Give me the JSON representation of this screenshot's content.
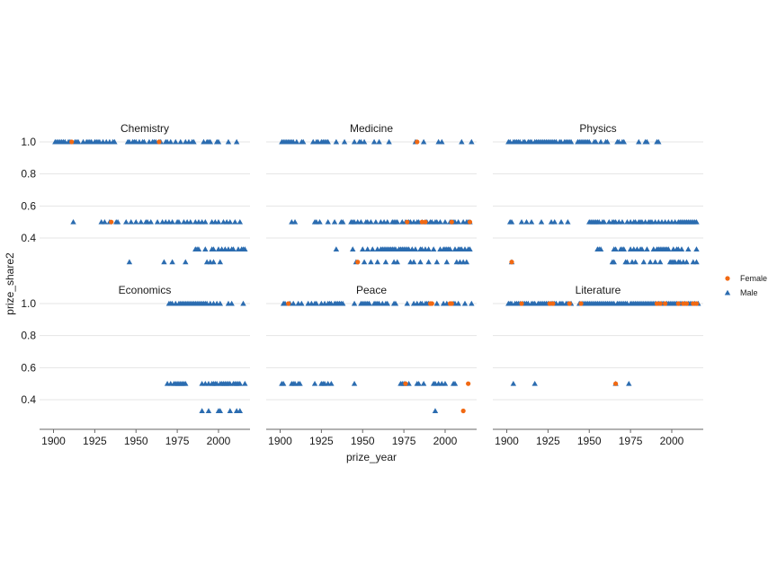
{
  "chart_data": {
    "type": "scatter",
    "xlabel": "prize_year",
    "ylabel": "prize_share2",
    "xlim": [
      1897,
      2018
    ],
    "ylim": [
      0.25,
      1.05
    ],
    "xticks": [
      1900,
      1925,
      1950,
      1975,
      2000
    ],
    "yticks": [
      0.4,
      0.6,
      0.8,
      1.0
    ],
    "ytick_labels": [
      "0.4",
      "0.6",
      "0.8",
      "1.0"
    ],
    "colors": {
      "Female": "#f16913",
      "Male": "#2b6cb0",
      "grid": "#e5e5e5",
      "axis": "#666666"
    },
    "legend": {
      "position": "right",
      "items": [
        {
          "name": "Female",
          "marker": "circle"
        },
        {
          "name": "Male",
          "marker": "triangle"
        }
      ]
    },
    "facets": [
      {
        "title": "Chemistry",
        "Male": {
          "1.0": [
            1901,
            1902,
            1903,
            1904,
            1905,
            1906,
            1907,
            1909,
            1910,
            1913,
            1914,
            1915,
            1918,
            1920,
            1921,
            1922,
            1923,
            1925,
            1926,
            1927,
            1928,
            1930,
            1932,
            1934,
            1936,
            1937,
            1945,
            1946,
            1948,
            1949,
            1950,
            1952,
            1954,
            1955,
            1958,
            1960,
            1961,
            1962,
            1964,
            1965,
            1968,
            1969,
            1971,
            1974,
            1977,
            1980,
            1982,
            1984,
            1985,
            1991,
            1993,
            1994,
            1995,
            1999,
            2000,
            2006,
            2011
          ],
          "0.5": [
            1912,
            1929,
            1931,
            1934,
            1938,
            1939,
            1944,
            1947,
            1950,
            1953,
            1956,
            1957,
            1959,
            1963,
            1966,
            1968,
            1970,
            1972,
            1975,
            1976,
            1979,
            1981,
            1983,
            1986,
            1988,
            1990,
            1992,
            1996,
            1998,
            2000,
            2003,
            2005,
            2007,
            2010,
            2013
          ],
          "0.33": [
            1986,
            1987,
            1988,
            1992,
            1996,
            1997,
            2000,
            2002,
            2004,
            2006,
            2008,
            2009,
            2012,
            2014,
            2015,
            2016
          ],
          "0.25": [
            1946,
            1967,
            1972,
            1980,
            1993,
            1995,
            1997,
            2001
          ]
        },
        "Female": {
          "1.0": [
            1911,
            1964
          ],
          "0.5": [
            1935
          ]
        }
      },
      {
        "title": "Medicine",
        "Male": {
          "1.0": [
            1901,
            1902,
            1903,
            1904,
            1905,
            1906,
            1907,
            1908,
            1910,
            1913,
            1914,
            1920,
            1922,
            1923,
            1925,
            1926,
            1927,
            1928,
            1929,
            1934,
            1939,
            1945,
            1948,
            1949,
            1951,
            1957,
            1960,
            1966,
            1982,
            1987,
            1996,
            1998,
            2010,
            2016
          ],
          "0.5": [
            1907,
            1909,
            1921,
            1922,
            1924,
            1929,
            1933,
            1937,
            1938,
            1943,
            1944,
            1945,
            1947,
            1949,
            1952,
            1953,
            1955,
            1958,
            1961,
            1963,
            1965,
            1968,
            1969,
            1970,
            1971,
            1974,
            1976,
            1978,
            1979,
            1981,
            1983,
            1984,
            1986,
            1988,
            1989,
            1991,
            1992,
            1994,
            1995,
            1997,
            2000,
            2003,
            2004,
            2005,
            2006,
            2008,
            2011,
            2013,
            2014,
            2015
          ],
          "0.33": [
            1934,
            1944,
            1950,
            1953,
            1956,
            1959,
            1961,
            1962,
            1963,
            1964,
            1965,
            1966,
            1967,
            1968,
            1969,
            1970,
            1972,
            1973,
            1974,
            1975,
            1976,
            1977,
            1978,
            1980,
            1982,
            1985,
            1986,
            1988,
            1990,
            1993,
            1997,
            1999,
            2000,
            2001,
            2002,
            2003,
            2006,
            2008,
            2009,
            2010,
            2012,
            2014,
            2015
          ],
          "0.25": [
            1946,
            1951,
            1955,
            1959,
            1964,
            1969,
            1971,
            1979,
            1981,
            1985,
            1990,
            1995,
            2001,
            2007,
            2009,
            2011,
            2013
          ]
        },
        "Female": {
          "1.0": [
            1983
          ],
          "0.5": [
            1977,
            1986,
            1988,
            2004,
            2015
          ],
          "0.25": [
            1947
          ]
        }
      },
      {
        "title": "Physics",
        "Male": {
          "1.0": [
            1901,
            1902,
            1904,
            1905,
            1906,
            1907,
            1908,
            1910,
            1911,
            1913,
            1914,
            1915,
            1917,
            1918,
            1919,
            1920,
            1921,
            1922,
            1923,
            1924,
            1925,
            1926,
            1927,
            1928,
            1929,
            1930,
            1932,
            1933,
            1935,
            1936,
            1937,
            1938,
            1939,
            1943,
            1944,
            1945,
            1946,
            1947,
            1948,
            1949,
            1950,
            1953,
            1954,
            1957,
            1960,
            1961,
            1967,
            1968,
            1970,
            1971,
            1980,
            1984,
            1985,
            1991,
            1992
          ],
          "0.5": [
            1902,
            1903,
            1909,
            1912,
            1915,
            1921,
            1927,
            1929,
            1933,
            1937,
            1950,
            1951,
            1952,
            1953,
            1954,
            1955,
            1956,
            1958,
            1959,
            1962,
            1964,
            1965,
            1966,
            1968,
            1970,
            1973,
            1975,
            1977,
            1978,
            1980,
            1981,
            1982,
            1984,
            1986,
            1987,
            1988,
            1990,
            1992,
            1994,
            1996,
            1998,
            2000,
            2002,
            2004,
            2005,
            2006,
            2007,
            2008,
            2009,
            2010,
            2011,
            2012,
            2013,
            2014,
            2015
          ],
          "0.33": [
            1955,
            1956,
            1957,
            1965,
            1966,
            1969,
            1970,
            1971,
            1975,
            1977,
            1979,
            1981,
            1982,
            1985,
            1989,
            1991,
            1992,
            1993,
            1994,
            1995,
            1996,
            1997,
            1998,
            2001,
            2003,
            2004,
            2006,
            2010,
            2015
          ],
          "0.25": [
            1903,
            1964,
            1965,
            1972,
            1973,
            1976,
            1978,
            1983,
            1987,
            1990,
            1993,
            1999,
            2000,
            2001,
            2002,
            2004,
            2005,
            2007,
            2009,
            2013,
            2015
          ]
        },
        "Female": {
          "0.25": [
            1903
          ]
        }
      },
      {
        "title": "Economics",
        "Male": {
          "1.0": [
            1970,
            1971,
            1972,
            1974,
            1976,
            1977,
            1978,
            1979,
            1980,
            1981,
            1982,
            1983,
            1984,
            1985,
            1986,
            1987,
            1988,
            1989,
            1990,
            1991,
            1992,
            1993,
            1995,
            1997,
            1999,
            2001,
            2006,
            2008,
            2015
          ],
          "0.5": [
            1969,
            1971,
            1973,
            1974,
            1975,
            1976,
            1977,
            1978,
            1979,
            1980,
            1990,
            1992,
            1994,
            1996,
            1997,
            1998,
            1999,
            2001,
            2002,
            2003,
            2004,
            2005,
            2006,
            2007,
            2009,
            2010,
            2011,
            2012,
            2013,
            2016
          ],
          "0.33": [
            1990,
            1994,
            2000,
            2001,
            2007,
            2011,
            2013
          ]
        },
        "Female": {}
      },
      {
        "title": "Peace",
        "Male": {
          "1.0": [
            1902,
            1903,
            1906,
            1908,
            1911,
            1913,
            1917,
            1919,
            1921,
            1922,
            1925,
            1927,
            1929,
            1930,
            1931,
            1933,
            1934,
            1935,
            1936,
            1937,
            1938,
            1945,
            1949,
            1950,
            1951,
            1952,
            1953,
            1954,
            1957,
            1958,
            1959,
            1960,
            1962,
            1964,
            1965,
            1969,
            1970,
            1977,
            1981,
            1983,
            1985,
            1986,
            1988,
            1989,
            1990,
            1995,
            1999,
            2001,
            2005,
            2006,
            2008,
            2012,
            2016
          ],
          "0.5": [
            1901,
            1902,
            1907,
            1908,
            1909,
            1911,
            1912,
            1921,
            1925,
            1926,
            1927,
            1929,
            1931,
            1945,
            1973,
            1974,
            1975,
            1976,
            1978,
            1983,
            1984,
            1987,
            1993,
            1994,
            1996,
            1998,
            2000,
            2005,
            2006
          ],
          "0.33": [
            1994
          ]
        },
        "Female": {
          "1.0": [
            1905,
            1991,
            1992,
            2003,
            2004
          ],
          "0.5": [
            1976,
            2014
          ],
          "0.33": [
            2011
          ]
        }
      },
      {
        "title": "Literature",
        "Male": {
          "1.0": [
            1901,
            1902,
            1903,
            1905,
            1906,
            1907,
            1908,
            1910,
            1911,
            1912,
            1913,
            1915,
            1916,
            1917,
            1919,
            1920,
            1921,
            1922,
            1923,
            1924,
            1925,
            1927,
            1928,
            1929,
            1930,
            1932,
            1933,
            1934,
            1936,
            1937,
            1939,
            1944,
            1946,
            1947,
            1948,
            1949,
            1950,
            1951,
            1952,
            1953,
            1954,
            1955,
            1956,
            1957,
            1958,
            1959,
            1960,
            1961,
            1962,
            1963,
            1964,
            1965,
            1967,
            1968,
            1969,
            1970,
            1971,
            1972,
            1973,
            1975,
            1976,
            1977,
            1978,
            1979,
            1980,
            1981,
            1982,
            1983,
            1984,
            1985,
            1986,
            1987,
            1988,
            1989,
            1990,
            1992,
            1994,
            1995,
            1997,
            1998,
            1999,
            2000,
            2001,
            2002,
            2003,
            2005,
            2006,
            2008,
            2010,
            2011,
            2012,
            2014,
            2016
          ],
          "0.5": [
            1904,
            1917,
            1966,
            1974
          ]
        },
        "Female": {
          "1.0": [
            1909,
            1926,
            1928,
            1938,
            1945,
            1991,
            1993,
            1996,
            2004,
            2007,
            2009,
            2013,
            2015
          ],
          "0.5": [
            1966
          ]
        }
      }
    ]
  }
}
